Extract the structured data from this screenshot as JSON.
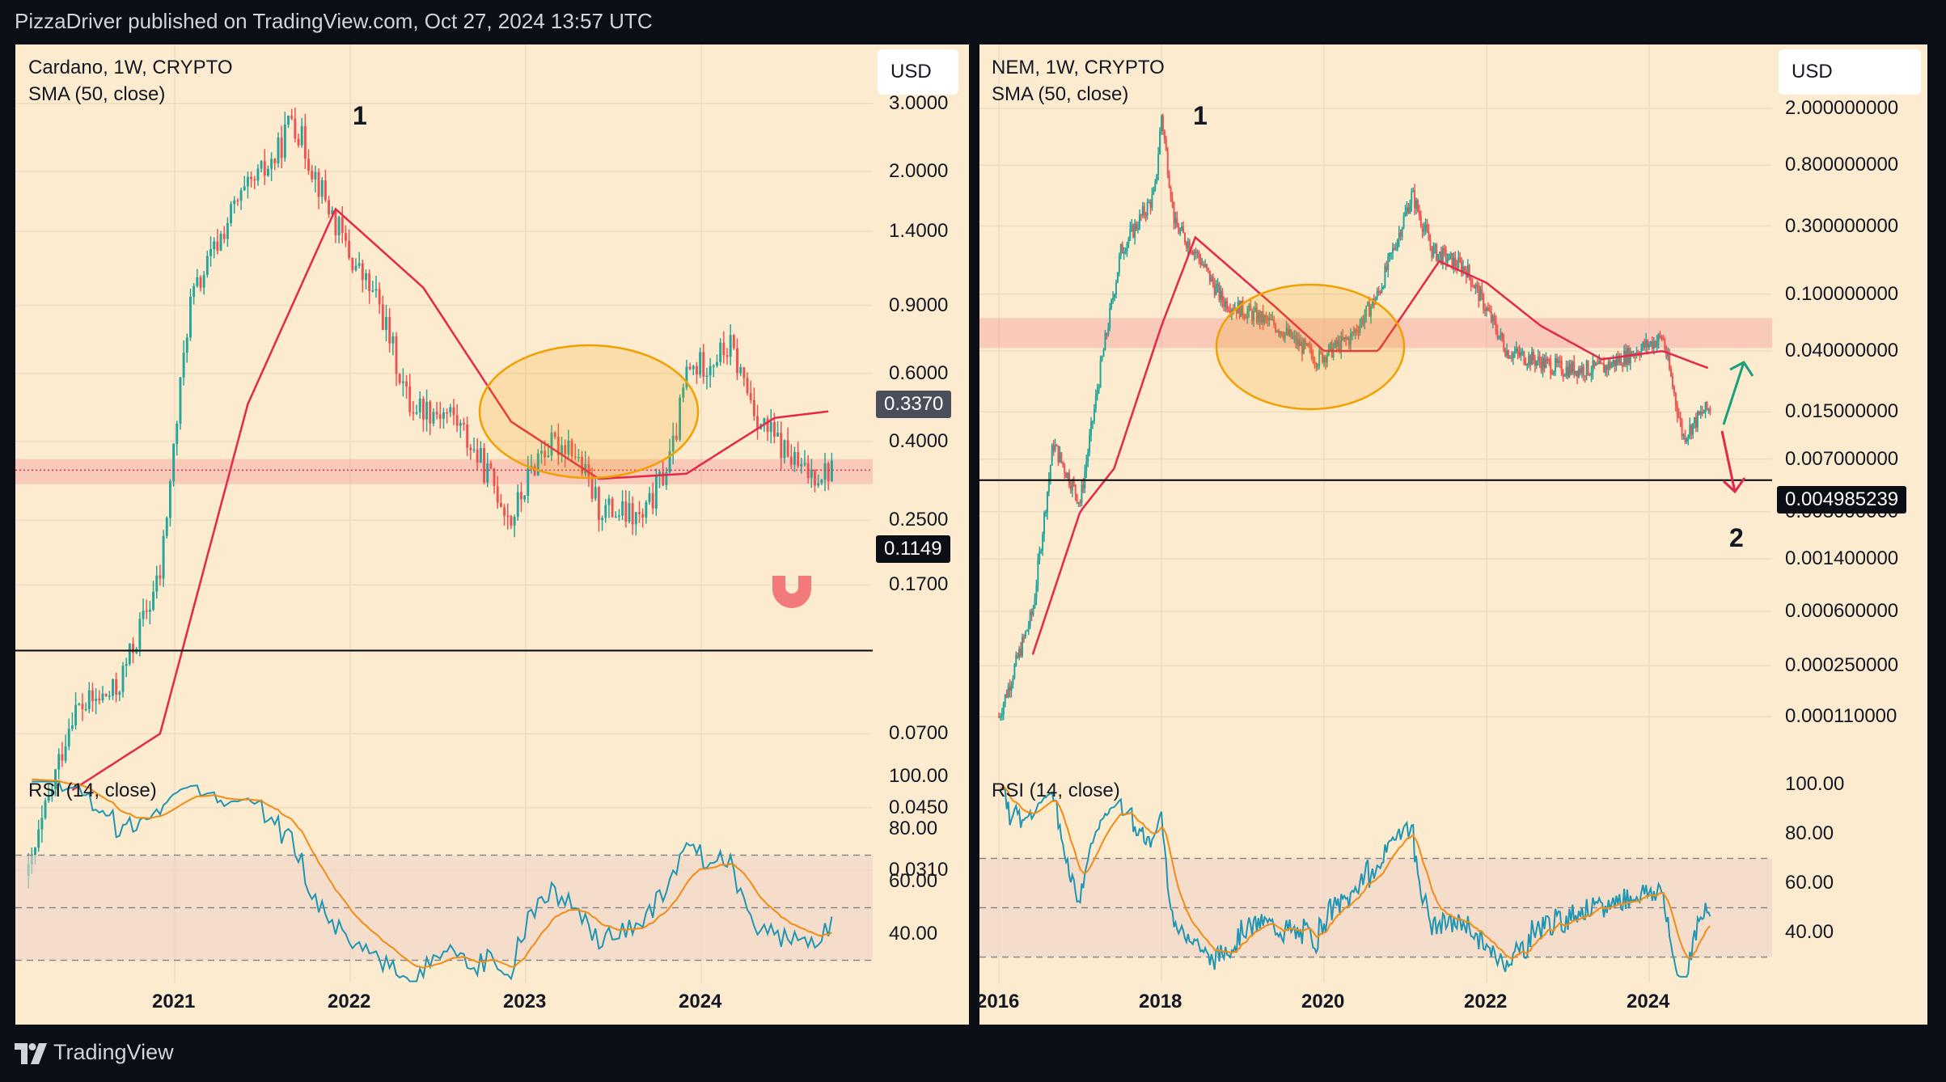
{
  "header": {
    "attribution": "PizzaDriver published on TradingView.com, Oct 27, 2024 13:57 UTC"
  },
  "footer": {
    "brand": "TradingView"
  },
  "colors": {
    "background": "#fdebd0",
    "sma": "#e5284a",
    "rsi": "#1e96b4",
    "rsi_ma": "#f08c14",
    "candle_up": "#26a69a",
    "candle_down": "#ef5350",
    "zone": "#f5a0a0",
    "ellipse": "#f0a000",
    "up_arrow": "#1a9f80",
    "down_arrow": "#e5284a"
  },
  "left": {
    "symbol": "Cardano, 1W, CRYPTO",
    "indicator": "SMA (50, close)",
    "currency": "USD",
    "price_tag": "0.3370",
    "level_tag": "0.1149",
    "annotation_1": "1",
    "rsi_label": "RSI (14, close)",
    "y_ticks": [
      "3.0000",
      "2.0000",
      "1.4000",
      "0.9000",
      "0.6000",
      "0.4000",
      "0.2500",
      "0.1700",
      "0.0700",
      "0.0450",
      "0.0310"
    ],
    "rsi_ticks": [
      "100.00",
      "80.00",
      "60.00",
      "40.00"
    ],
    "x_ticks": [
      "2021",
      "2022",
      "2023",
      "2024"
    ],
    "magnet_icon": "magnet-icon"
  },
  "right": {
    "symbol": "NEM, 1W, CRYPTO",
    "indicator": "SMA (50, close)",
    "currency": "USD",
    "level_tag": "0.004985239",
    "annotation_1": "1",
    "annotation_2": "2",
    "rsi_label": "RSI (14, close)",
    "y_ticks": [
      "2.000000000",
      "0.800000000",
      "0.300000000",
      "0.100000000",
      "0.040000000",
      "0.015000000",
      "0.007000000",
      "0.003000000",
      "0.001400000",
      "0.000600000",
      "0.000250000",
      "0.000110000"
    ],
    "rsi_ticks": [
      "100.00",
      "80.00",
      "60.00",
      "40.00"
    ],
    "x_ticks": [
      "2016",
      "2018",
      "2020",
      "2022",
      "2024"
    ]
  },
  "chart_data": [
    {
      "type": "candlestick",
      "title": "Cardano, 1W, CRYPTO",
      "scale": "log",
      "ylim": [
        0.025,
        3.3
      ],
      "x_range": [
        "2020-03",
        "2024-10"
      ],
      "close_path": [
        [
          "2020-03",
          0.03
        ],
        [
          "2020-06",
          0.08
        ],
        [
          "2020-09",
          0.09
        ],
        [
          "2020-12",
          0.18
        ],
        [
          "2021-02",
          0.9
        ],
        [
          "2021-05",
          1.6
        ],
        [
          "2021-08",
          2.2
        ],
        [
          "2021-09",
          2.8
        ],
        [
          "2021-11",
          1.8
        ],
        [
          "2022-01",
          1.2
        ],
        [
          "2022-03",
          0.9
        ],
        [
          "2022-05",
          0.5
        ],
        [
          "2022-08",
          0.47
        ],
        [
          "2022-11",
          0.3
        ],
        [
          "2022-12",
          0.25
        ],
        [
          "2023-02",
          0.38
        ],
        [
          "2023-04",
          0.4
        ],
        [
          "2023-06",
          0.27
        ],
        [
          "2023-09",
          0.25
        ],
        [
          "2023-11",
          0.37
        ],
        [
          "2023-12",
          0.6
        ],
        [
          "2024-03",
          0.7
        ],
        [
          "2024-05",
          0.45
        ],
        [
          "2024-08",
          0.33
        ],
        [
          "2024-10",
          0.337
        ]
      ],
      "sma_50": [
        [
          "2020-06",
          0.05
        ],
        [
          "2020-12",
          0.07
        ],
        [
          "2021-06",
          0.5
        ],
        [
          "2021-12",
          1.6
        ],
        [
          "2022-06",
          1.0
        ],
        [
          "2022-12",
          0.45
        ],
        [
          "2023-06",
          0.32
        ],
        [
          "2023-12",
          0.33
        ],
        [
          "2024-06",
          0.46
        ],
        [
          "2024-10",
          0.48
        ]
      ],
      "horizontal_levels": [
        0.1149
      ],
      "zone": [
        0.31,
        0.36
      ],
      "rsi": {
        "range": [
          0,
          100
        ],
        "overbought": 70,
        "oversold": 30,
        "peak": 95,
        "last": 43
      }
    },
    {
      "type": "candlestick",
      "title": "NEM, 1W, CRYPTO",
      "scale": "log",
      "ylim": [
        9e-05,
        2.3
      ],
      "x_range": [
        "2016-01",
        "2024-11"
      ],
      "close_path": [
        [
          "2016-01",
          0.00011
        ],
        [
          "2016-06",
          0.0006
        ],
        [
          "2016-09",
          0.009
        ],
        [
          "2017-01",
          0.0035
        ],
        [
          "2017-04",
          0.03
        ],
        [
          "2017-07",
          0.2
        ],
        [
          "2017-12",
          0.5
        ],
        [
          "2018-01",
          1.8
        ],
        [
          "2018-03",
          0.3
        ],
        [
          "2018-06",
          0.2
        ],
        [
          "2018-10",
          0.09
        ],
        [
          "2019-06",
          0.06
        ],
        [
          "2019-12",
          0.035
        ],
        [
          "2020-05",
          0.05
        ],
        [
          "2020-09",
          0.1
        ],
        [
          "2021-02",
          0.5
        ],
        [
          "2021-05",
          0.2
        ],
        [
          "2021-10",
          0.15
        ],
        [
          "2022-04",
          0.04
        ],
        [
          "2022-12",
          0.03
        ],
        [
          "2023-06",
          0.03
        ],
        [
          "2024-03",
          0.05
        ],
        [
          "2024-06",
          0.01
        ],
        [
          "2024-09",
          0.015
        ],
        [
          "2024-10",
          0.016
        ]
      ],
      "sma_50": [
        [
          "2016-06",
          0.0003
        ],
        [
          "2017-01",
          0.003
        ],
        [
          "2017-06",
          0.006
        ],
        [
          "2018-01",
          0.06
        ],
        [
          "2018-06",
          0.25
        ],
        [
          "2019-06",
          0.08
        ],
        [
          "2020-01",
          0.04
        ],
        [
          "2020-09",
          0.04
        ],
        [
          "2021-06",
          0.17
        ],
        [
          "2022-01",
          0.12
        ],
        [
          "2022-09",
          0.06
        ],
        [
          "2023-06",
          0.035
        ],
        [
          "2024-03",
          0.04
        ],
        [
          "2024-10",
          0.03
        ]
      ],
      "horizontal_levels": [
        0.004985239
      ],
      "zone": [
        0.042,
        0.068
      ],
      "rsi": {
        "range": [
          0,
          100
        ],
        "overbought": 70,
        "oversold": 30,
        "peak": 92,
        "last": 42
      }
    }
  ]
}
